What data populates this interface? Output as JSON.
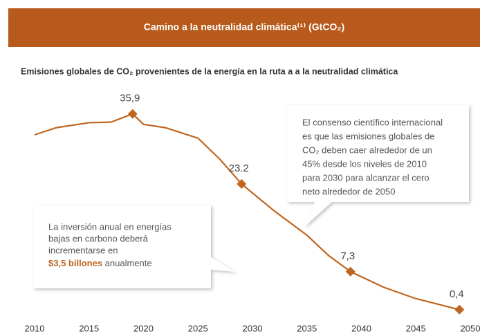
{
  "chart_data": {
    "type": "line",
    "title": "Camino a la neutralidad climática⁽¹⁾ (GtCO₂)",
    "subtitle": "Emisiones globales de CO₂ provenientes de la energía en la ruta a a la neutralidad climática",
    "x": [
      2010,
      2012,
      2015,
      2017,
      2019,
      2020,
      2022,
      2025,
      2027,
      2029,
      2032,
      2035,
      2037,
      2039,
      2042,
      2045,
      2049
    ],
    "values": [
      32.1,
      33.4,
      34.3,
      34.4,
      35.9,
      34.0,
      33.4,
      31.5,
      27.7,
      23.2,
      18.3,
      13.9,
      10.2,
      7.3,
      4.5,
      2.4,
      0.4
    ],
    "value_labels": [
      null,
      null,
      null,
      null,
      "35,9",
      null,
      null,
      null,
      null,
      "23.2",
      null,
      null,
      null,
      "7,3",
      null,
      null,
      "0,4"
    ],
    "color": "#c0651f",
    "xlim": [
      2010,
      2050
    ],
    "xticks": [
      2010,
      2015,
      2020,
      2025,
      2030,
      2035,
      2040,
      2045,
      2050
    ],
    "ylim": [
      0,
      40
    ],
    "annotations": [
      {
        "lines": [
          "El consenso científico internacional",
          "es que las emisiones globales de",
          "CO₂ deben caer alrededor de un",
          "45% desde los niveles de 2010",
          "para 2030 para alcanzar el cero",
          "neto alrededor de 2050"
        ]
      },
      {
        "lines": [
          "La inversión anual en energías",
          "bajas en carbono deberá",
          "incrementarse en"
        ],
        "highlight": "$3,5 billones",
        "tail": " anualmente"
      }
    ]
  }
}
